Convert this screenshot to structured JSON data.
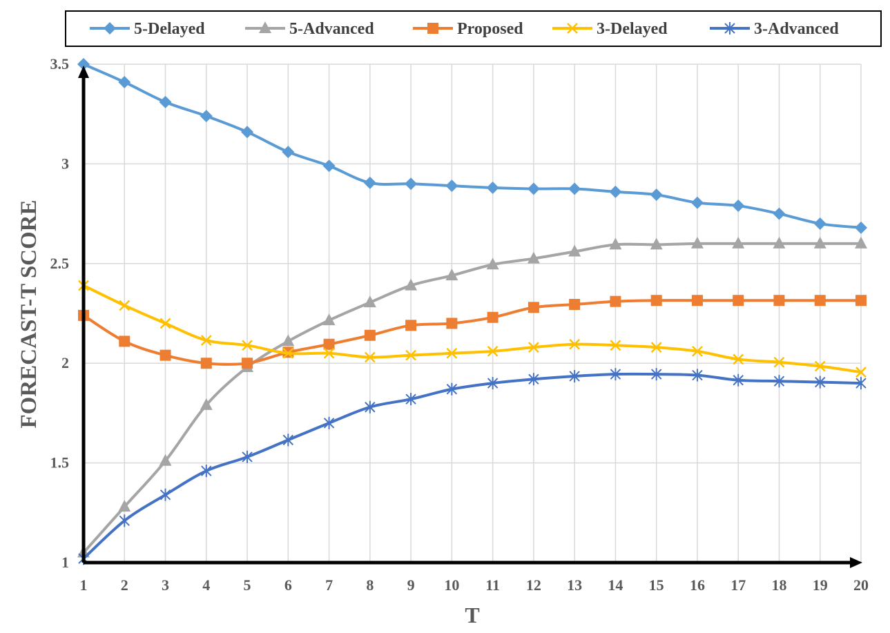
{
  "chart_data": {
    "type": "line",
    "xlabel": "T",
    "ylabel": "FORECAST-T SCORE",
    "x": [
      1,
      2,
      3,
      4,
      5,
      6,
      7,
      8,
      9,
      10,
      11,
      12,
      13,
      14,
      15,
      16,
      17,
      18,
      19,
      20
    ],
    "xlim": [
      1,
      20
    ],
    "ylim": [
      1,
      3.5
    ],
    "yticks": [
      1,
      1.5,
      2,
      2.5,
      3,
      3.5
    ],
    "ytick_labels": [
      "1",
      "1.5",
      "2",
      "2.5",
      "3",
      "3.5"
    ],
    "xtick_labels": [
      "1",
      "2",
      "3",
      "4",
      "5",
      "6",
      "7",
      "8",
      "9",
      "10",
      "11",
      "12",
      "13",
      "14",
      "15",
      "16",
      "17",
      "18",
      "19",
      "20"
    ],
    "grid": true,
    "legend_position": "top",
    "series": [
      {
        "name": "5-Delayed",
        "color": "#5B9BD5",
        "marker": "diamond",
        "values": [
          3.5,
          3.41,
          3.31,
          3.24,
          3.16,
          3.06,
          2.99,
          2.905,
          2.9,
          2.89,
          2.88,
          2.875,
          2.875,
          2.86,
          2.845,
          2.805,
          2.79,
          2.75,
          2.7,
          2.68
        ]
      },
      {
        "name": "5-Advanced",
        "color": "#A5A5A5",
        "marker": "triangle",
        "values": [
          1.05,
          1.28,
          1.51,
          1.79,
          1.98,
          2.11,
          2.215,
          2.305,
          2.39,
          2.44,
          2.495,
          2.525,
          2.56,
          2.595,
          2.595,
          2.6,
          2.6,
          2.6,
          2.6,
          2.6
        ]
      },
      {
        "name": "Proposed",
        "color": "#ED7D31",
        "marker": "square",
        "values": [
          2.24,
          2.11,
          2.04,
          2.0,
          2.0,
          2.055,
          2.095,
          2.14,
          2.19,
          2.2,
          2.23,
          2.28,
          2.295,
          2.31,
          2.315,
          2.315,
          2.315,
          2.315,
          2.315,
          2.315
        ]
      },
      {
        "name": "3-Delayed",
        "color": "#FFC000",
        "marker": "x",
        "values": [
          2.39,
          2.29,
          2.2,
          2.115,
          2.09,
          2.05,
          2.05,
          2.03,
          2.04,
          2.05,
          2.06,
          2.08,
          2.095,
          2.09,
          2.08,
          2.06,
          2.02,
          2.005,
          1.985,
          1.955
        ]
      },
      {
        "name": "3-Advanced",
        "color": "#4472C4",
        "marker": "star",
        "values": [
          1.02,
          1.21,
          1.34,
          1.46,
          1.53,
          1.615,
          1.7,
          1.78,
          1.82,
          1.87,
          1.9,
          1.92,
          1.935,
          1.945,
          1.945,
          1.94,
          1.915,
          1.91,
          1.905,
          1.9
        ]
      }
    ]
  }
}
